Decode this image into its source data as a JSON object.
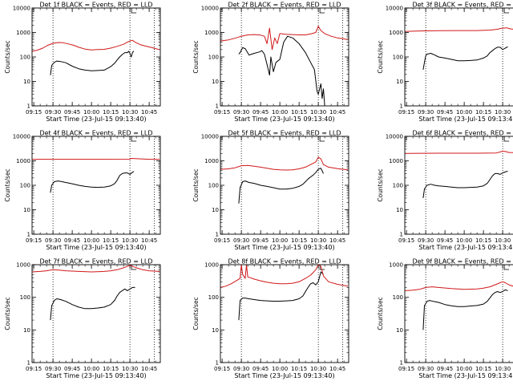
{
  "colors": {
    "events": "#000000",
    "lld": "#d01818",
    "axes": "#000000",
    "background": "#ffffff"
  },
  "common": {
    "ylabel": "Counts/sec",
    "xlabel": "Start Time (23-Jul-15 09:13:40)",
    "xticks": [
      "09:15",
      "09:30",
      "09:45",
      "10:00",
      "10:15",
      "10:30",
      "10:45"
    ],
    "yticks": [
      "1",
      "10",
      "100",
      "1000",
      "10000"
    ]
  },
  "chart_data": [
    {
      "type": "line",
      "title": "Det 1f BLACK = Events, RED = LLD",
      "ylog": true,
      "ylim": [
        1,
        10000
      ],
      "x_range": [
        "09:13:40",
        "10:53:40"
      ],
      "markers_x": [
        "09:30",
        "10:30",
        "10:49"
      ],
      "series": [
        {
          "name": "Events",
          "x": [
            "09:28",
            "09:29",
            "09:31",
            "09:33",
            "09:36",
            "09:40",
            "09:45",
            "09:50",
            "09:55",
            "10:00",
            "10:05",
            "10:10",
            "10:15",
            "10:18",
            "10:20",
            "10:22",
            "10:24",
            "10:26",
            "10:28",
            "10:29",
            "10:30",
            "10:31",
            "10:32",
            "10:33"
          ],
          "values": [
            18,
            45,
            60,
            68,
            65,
            58,
            42,
            33,
            29,
            27,
            28,
            29,
            40,
            55,
            75,
            100,
            125,
            150,
            150,
            170,
            140,
            100,
            150,
            175
          ]
        },
        {
          "name": "LLD",
          "x": [
            "09:13:40",
            "09:18",
            "09:22",
            "09:26",
            "09:30",
            "09:34",
            "09:38",
            "09:42",
            "09:46",
            "09:50",
            "09:55",
            "10:00",
            "10:05",
            "10:10",
            "10:15",
            "10:20",
            "10:25",
            "10:28",
            "10:30",
            "10:32",
            "10:34",
            "10:38",
            "10:42",
            "10:46",
            "10:50",
            "10:53"
          ],
          "values": [
            170,
            190,
            230,
            300,
            360,
            390,
            380,
            340,
            300,
            250,
            210,
            195,
            200,
            205,
            230,
            270,
            330,
            400,
            450,
            480,
            400,
            320,
            280,
            250,
            220,
            200
          ]
        }
      ]
    },
    {
      "type": "line",
      "title": "Det 2f BLACK = Events, RED = LLD",
      "ylog": true,
      "ylim": [
        1,
        10000
      ],
      "x_range": [
        "09:13:40",
        "10:53:40"
      ],
      "markers_x": [
        "09:30",
        "10:30",
        "10:49"
      ],
      "series": [
        {
          "name": "Events",
          "x": [
            "09:28",
            "09:29",
            "09:31",
            "09:33",
            "09:36",
            "09:40",
            "09:44",
            "09:46",
            "09:48",
            "09:50",
            "09:52",
            "09:53",
            "09:55",
            "09:57",
            "10:00",
            "10:03",
            "10:06",
            "10:10",
            "10:15",
            "10:20",
            "10:24",
            "10:27",
            "10:29",
            "10:30",
            "10:32",
            "10:33",
            "10:34",
            "10:35"
          ],
          "values": [
            130,
            150,
            240,
            220,
            120,
            140,
            160,
            180,
            130,
            50,
            18,
            100,
            25,
            60,
            80,
            400,
            700,
            600,
            350,
            150,
            60,
            30,
            4,
            3,
            8,
            2,
            5,
            1
          ]
        },
        {
          "name": "LLD",
          "x": [
            "09:13:40",
            "09:20",
            "09:25",
            "09:30",
            "09:35",
            "09:40",
            "09:45",
            "09:48",
            "09:50",
            "09:52",
            "09:54",
            "09:56",
            "09:58",
            "10:00",
            "10:05",
            "10:10",
            "10:15",
            "10:20",
            "10:25",
            "10:28",
            "10:30",
            "10:32",
            "10:35",
            "10:40",
            "10:45",
            "10:50",
            "10:53"
          ],
          "values": [
            450,
            500,
            580,
            700,
            800,
            820,
            780,
            700,
            350,
            1500,
            200,
            600,
            350,
            900,
            850,
            820,
            800,
            800,
            900,
            1000,
            1800,
            1200,
            900,
            700,
            600,
            550,
            500
          ]
        }
      ]
    },
    {
      "type": "line",
      "title": "Det 3f BLACK = Events, RED = LLD",
      "ylog": true,
      "ylim": [
        1,
        10000
      ],
      "x_range": [
        "09:13:40",
        "10:53:40"
      ],
      "markers_x": [
        "09:30",
        "10:30",
        "10:49"
      ],
      "series": [
        {
          "name": "Events",
          "x": [
            "09:28",
            "09:29",
            "09:30",
            "09:31",
            "09:34",
            "09:37",
            "09:40",
            "09:45",
            "09:50",
            "09:55",
            "10:00",
            "10:05",
            "10:10",
            "10:15",
            "10:18",
            "10:20",
            "10:22",
            "10:24",
            "10:26",
            "10:28",
            "10:30",
            "10:32",
            "10:34"
          ],
          "values": [
            30,
            60,
            110,
            130,
            140,
            120,
            100,
            90,
            80,
            70,
            70,
            72,
            75,
            90,
            110,
            150,
            180,
            220,
            250,
            250,
            200,
            230,
            260
          ]
        },
        {
          "name": "LLD",
          "x": [
            "09:13:40",
            "09:25",
            "09:40",
            "09:55",
            "10:10",
            "10:20",
            "10:26",
            "10:28",
            "10:30",
            "10:33",
            "10:36",
            "10:45",
            "10:53"
          ],
          "values": [
            1100,
            1150,
            1180,
            1200,
            1200,
            1250,
            1350,
            1450,
            1500,
            1550,
            1400,
            1250,
            1200
          ]
        }
      ]
    },
    {
      "type": "line",
      "title": "Det 4f BLACK = Events, RED = LLD",
      "ylog": true,
      "ylim": [
        1,
        10000
      ],
      "x_range": [
        "09:13:40",
        "10:53:40"
      ],
      "markers_x": [
        "09:30",
        "10:30",
        "10:49"
      ],
      "series": [
        {
          "name": "Events",
          "x": [
            "09:28",
            "09:29",
            "09:31",
            "09:34",
            "09:37",
            "09:40",
            "09:45",
            "09:50",
            "09:55",
            "10:00",
            "10:05",
            "10:10",
            "10:15",
            "10:18",
            "10:20",
            "10:22",
            "10:24",
            "10:26",
            "10:28",
            "10:30",
            "10:32",
            "10:33"
          ],
          "values": [
            50,
            100,
            140,
            150,
            140,
            130,
            115,
            100,
            90,
            85,
            82,
            85,
            95,
            115,
            160,
            250,
            300,
            320,
            320,
            280,
            340,
            370
          ]
        },
        {
          "name": "LLD",
          "x": [
            "09:13:40",
            "09:40",
            "10:10",
            "10:30",
            "10:31",
            "10:45",
            "10:53"
          ],
          "values": [
            1150,
            1150,
            1150,
            1160,
            1250,
            1150,
            1150
          ]
        }
      ]
    },
    {
      "type": "line",
      "title": "Det 5f BLACK = Events, RED = LLD",
      "ylog": true,
      "ylim": [
        1,
        10000
      ],
      "x_range": [
        "09:13:40",
        "10:53:40"
      ],
      "markers_x": [
        "09:30",
        "10:30",
        "10:49"
      ],
      "series": [
        {
          "name": "Events",
          "x": [
            "09:28",
            "09:29",
            "09:31",
            "09:33",
            "09:36",
            "09:40",
            "09:45",
            "09:50",
            "09:55",
            "10:00",
            "10:05",
            "10:10",
            "10:15",
            "10:18",
            "10:20",
            "10:22",
            "10:24",
            "10:26",
            "10:28",
            "10:30",
            "10:32",
            "10:34"
          ],
          "values": [
            18,
            80,
            140,
            150,
            130,
            120,
            100,
            90,
            80,
            70,
            70,
            75,
            90,
            110,
            140,
            180,
            220,
            260,
            330,
            450,
            500,
            300
          ]
        },
        {
          "name": "LLD",
          "x": [
            "09:13:40",
            "09:20",
            "09:25",
            "09:30",
            "09:35",
            "09:40",
            "09:45",
            "09:50",
            "09:55",
            "10:00",
            "10:05",
            "10:10",
            "10:15",
            "10:20",
            "10:24",
            "10:28",
            "10:30",
            "10:32",
            "10:34",
            "10:38",
            "10:45",
            "10:53"
          ],
          "values": [
            450,
            470,
            520,
            630,
            650,
            600,
            550,
            500,
            450,
            430,
            420,
            430,
            470,
            550,
            700,
            900,
            1400,
            1200,
            700,
            550,
            480,
            430
          ]
        }
      ]
    },
    {
      "type": "line",
      "title": "Det 6f BLACK = Events, RED = LLD",
      "ylog": true,
      "ylim": [
        1,
        10000
      ],
      "x_range": [
        "09:13:40",
        "10:53:40"
      ],
      "markers_x": [
        "09:30",
        "10:30",
        "10:49"
      ],
      "series": [
        {
          "name": "Events",
          "x": [
            "09:28",
            "09:29",
            "09:31",
            "09:34",
            "09:37",
            "09:40",
            "09:45",
            "09:50",
            "09:55",
            "10:00",
            "10:05",
            "10:10",
            "10:15",
            "10:18",
            "10:20",
            "10:22",
            "10:24",
            "10:26",
            "10:28",
            "10:30",
            "10:32",
            "10:34"
          ],
          "values": [
            30,
            70,
            100,
            110,
            100,
            95,
            90,
            85,
            80,
            80,
            82,
            85,
            95,
            120,
            170,
            240,
            300,
            300,
            280,
            320,
            350,
            380
          ]
        },
        {
          "name": "LLD",
          "x": [
            "09:13:40",
            "09:40",
            "10:10",
            "10:25",
            "10:28",
            "10:30",
            "10:32",
            "10:35",
            "10:45",
            "10:53"
          ],
          "values": [
            2000,
            2050,
            2050,
            2100,
            2300,
            2500,
            2400,
            2200,
            2100,
            2050
          ]
        }
      ]
    },
    {
      "type": "line",
      "title": "Det 7f BLACK = Events, RED = LLD",
      "ylog": true,
      "ylim": [
        1,
        1000
      ],
      "x_range": [
        "09:13:40",
        "10:53:40"
      ],
      "markers_x": [
        "09:30",
        "10:30",
        "10:49"
      ],
      "series": [
        {
          "name": "Events",
          "x": [
            "09:28",
            "09:29",
            "09:31",
            "09:33",
            "09:36",
            "09:40",
            "09:45",
            "09:50",
            "09:55",
            "10:00",
            "10:05",
            "10:10",
            "10:15",
            "10:18",
            "10:20",
            "10:22",
            "10:24",
            "10:26",
            "10:28",
            "10:30",
            "10:32",
            "10:34"
          ],
          "values": [
            20,
            55,
            80,
            90,
            85,
            75,
            60,
            50,
            45,
            45,
            47,
            50,
            60,
            80,
            110,
            140,
            160,
            180,
            160,
            180,
            200,
            200
          ]
        },
        {
          "name": "LLD",
          "x": [
            "09:13:40",
            "09:20",
            "09:25",
            "09:30",
            "09:35",
            "09:40",
            "09:50",
            "10:00",
            "10:10",
            "10:15",
            "10:20",
            "10:25",
            "10:28",
            "10:30",
            "10:32",
            "10:35",
            "10:40",
            "10:45",
            "10:53"
          ],
          "values": [
            600,
            620,
            650,
            700,
            680,
            650,
            620,
            600,
            620,
            650,
            700,
            800,
            900,
            950,
            900,
            800,
            700,
            650,
            620
          ]
        }
      ]
    },
    {
      "type": "line",
      "title": "Det 8f BLACK = Events, RED = LLD",
      "ylog": true,
      "ylim": [
        1,
        1000
      ],
      "x_range": [
        "09:13:40",
        "10:53:40"
      ],
      "markers_x": [
        "09:30",
        "10:30",
        "10:49"
      ],
      "series": [
        {
          "name": "Events",
          "x": [
            "09:28",
            "09:29",
            "09:31",
            "09:33",
            "09:36",
            "09:40",
            "09:45",
            "09:50",
            "09:55",
            "10:00",
            "10:05",
            "10:10",
            "10:15",
            "10:18",
            "10:20",
            "10:22",
            "10:24",
            "10:26",
            "10:28",
            "10:30",
            "10:32",
            "10:34"
          ],
          "values": [
            20,
            80,
            95,
            95,
            90,
            85,
            80,
            78,
            76,
            76,
            78,
            80,
            90,
            110,
            150,
            200,
            260,
            280,
            240,
            300,
            600,
            500
          ]
        },
        {
          "name": "LLD",
          "x": [
            "09:13:40",
            "09:18",
            "09:22",
            "09:26",
            "09:29",
            "09:30",
            "09:31",
            "09:33",
            "09:34",
            "09:35",
            "09:37",
            "09:40",
            "09:45",
            "09:50",
            "09:55",
            "10:00",
            "10:05",
            "10:10",
            "10:15",
            "10:20",
            "10:24",
            "10:28",
            "10:30",
            "10:32",
            "10:34",
            "10:38",
            "10:45",
            "10:53"
          ],
          "values": [
            200,
            220,
            260,
            320,
            380,
            1000,
            500,
            380,
            1000,
            420,
            400,
            360,
            320,
            290,
            270,
            260,
            260,
            270,
            300,
            380,
            480,
            700,
            1000,
            900,
            450,
            300,
            250,
            220
          ]
        }
      ]
    },
    {
      "type": "line",
      "title": "Det 9f BLACK = Events, RED = LLD",
      "ylog": true,
      "ylim": [
        1,
        1000
      ],
      "x_range": [
        "09:13:40",
        "10:53:40"
      ],
      "markers_x": [
        "09:30",
        "10:30",
        "10:49"
      ],
      "series": [
        {
          "name": "Events",
          "x": [
            "09:28",
            "09:29",
            "09:31",
            "09:33",
            "09:36",
            "09:40",
            "09:45",
            "09:50",
            "09:55",
            "10:00",
            "10:05",
            "10:10",
            "10:15",
            "10:18",
            "10:20",
            "10:22",
            "10:24",
            "10:26",
            "10:28",
            "10:30",
            "10:32",
            "10:34"
          ],
          "values": [
            10,
            55,
            75,
            80,
            75,
            70,
            60,
            55,
            52,
            52,
            54,
            56,
            62,
            75,
            95,
            120,
            140,
            150,
            140,
            150,
            170,
            160
          ]
        },
        {
          "name": "LLD",
          "x": [
            "09:13:40",
            "09:20",
            "09:25",
            "09:30",
            "09:35",
            "09:40",
            "09:50",
            "10:00",
            "10:10",
            "10:15",
            "10:20",
            "10:25",
            "10:28",
            "10:30",
            "10:32",
            "10:35",
            "10:40",
            "10:45",
            "10:53"
          ],
          "values": [
            160,
            165,
            175,
            200,
            210,
            200,
            185,
            175,
            180,
            190,
            210,
            250,
            280,
            300,
            280,
            240,
            210,
            190,
            180
          ]
        }
      ]
    }
  ]
}
